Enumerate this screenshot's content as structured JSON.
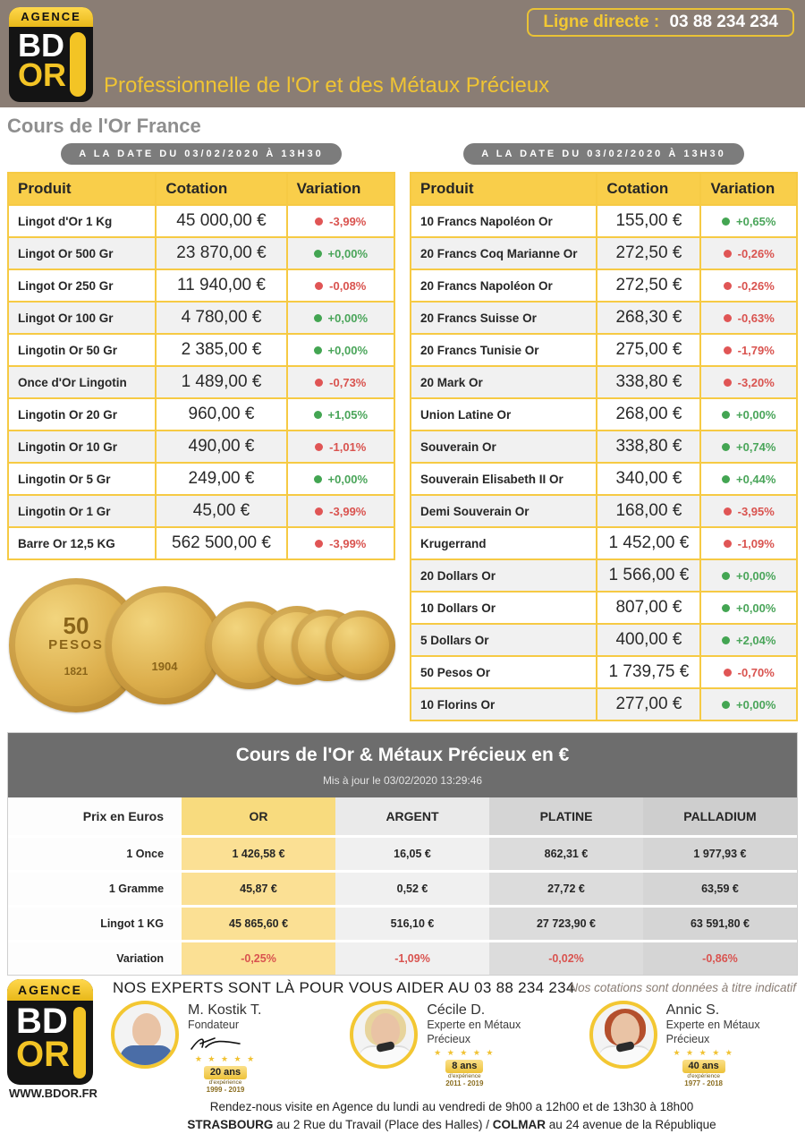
{
  "header": {
    "logo": {
      "band": "AGENCE",
      "top": "BD",
      "bottom": "OR"
    },
    "phone_label": "Ligne directe :",
    "phone_number": "03 88 234 234",
    "tagline": "Professionnelle de l'Or et des Métaux Précieux"
  },
  "page_title": "Cours de l'Or France",
  "price_tables": {
    "date_badge": "A LA DATE DU 03/02/2020 À 13H30",
    "columns": {
      "product": "Produit",
      "price": "Cotation",
      "variation": "Variation"
    },
    "left_rows": [
      {
        "product": "Lingot d'Or 1 Kg",
        "price": "45 000,00 €",
        "variation": "-3,99%",
        "dir": "down"
      },
      {
        "product": "Lingot Or 500 Gr",
        "price": "23 870,00 €",
        "variation": "+0,00%",
        "dir": "up"
      },
      {
        "product": "Lingot Or 250 Gr",
        "price": "11 940,00 €",
        "variation": "-0,08%",
        "dir": "down"
      },
      {
        "product": "Lingot Or 100 Gr",
        "price": "4 780,00 €",
        "variation": "+0,00%",
        "dir": "up"
      },
      {
        "product": "Lingotin Or 50 Gr",
        "price": "2 385,00 €",
        "variation": "+0,00%",
        "dir": "up"
      },
      {
        "product": "Once d'Or Lingotin",
        "price": "1 489,00 €",
        "variation": "-0,73%",
        "dir": "down"
      },
      {
        "product": "Lingotin Or 20 Gr",
        "price": "960,00 €",
        "variation": "+1,05%",
        "dir": "up"
      },
      {
        "product": "Lingotin Or 10 Gr",
        "price": "490,00 €",
        "variation": "-1,01%",
        "dir": "down"
      },
      {
        "product": "Lingotin Or 5 Gr",
        "price": "249,00 €",
        "variation": "+0,00%",
        "dir": "up"
      },
      {
        "product": "Lingotin Or 1 Gr",
        "price": "45,00 €",
        "variation": "-3,99%",
        "dir": "down"
      },
      {
        "product": "Barre Or 12,5 KG",
        "price": "562 500,00 €",
        "variation": "-3,99%",
        "dir": "down"
      }
    ],
    "right_rows": [
      {
        "product": "10 Francs Napoléon Or",
        "price": "155,00 €",
        "variation": "+0,65%",
        "dir": "up"
      },
      {
        "product": "20 Francs Coq Marianne Or",
        "price": "272,50 €",
        "variation": "-0,26%",
        "dir": "down"
      },
      {
        "product": "20 Francs Napoléon Or",
        "price": "272,50 €",
        "variation": "-0,26%",
        "dir": "down"
      },
      {
        "product": "20 Francs Suisse Or",
        "price": "268,30 €",
        "variation": "-0,63%",
        "dir": "down"
      },
      {
        "product": "20 Francs Tunisie Or",
        "price": "275,00 €",
        "variation": "-1,79%",
        "dir": "down"
      },
      {
        "product": "20 Mark Or",
        "price": "338,80 €",
        "variation": "-3,20%",
        "dir": "down"
      },
      {
        "product": "Union Latine Or",
        "price": "268,00 €",
        "variation": "+0,00%",
        "dir": "up"
      },
      {
        "product": "Souverain Or",
        "price": "338,80 €",
        "variation": "+0,74%",
        "dir": "up"
      },
      {
        "product": "Souverain Elisabeth II Or",
        "price": "340,00 €",
        "variation": "+0,44%",
        "dir": "up"
      },
      {
        "product": "Demi Souverain Or",
        "price": "168,00 €",
        "variation": "-3,95%",
        "dir": "down"
      },
      {
        "product": "Krugerrand",
        "price": "1 452,00 €",
        "variation": "-1,09%",
        "dir": "down"
      },
      {
        "product": "20 Dollars Or",
        "price": "1 566,00 €",
        "variation": "+0,00%",
        "dir": "up"
      },
      {
        "product": "10 Dollars Or",
        "price": "807,00 €",
        "variation": "+0,00%",
        "dir": "up"
      },
      {
        "product": "5 Dollars Or",
        "price": "400,00 €",
        "variation": "+2,04%",
        "dir": "up"
      },
      {
        "product": "50 Pesos Or",
        "price": "1 739,75 €",
        "variation": "-0,70%",
        "dir": "down"
      },
      {
        "product": "10 Florins Or",
        "price": "277,00 €",
        "variation": "+0,00%",
        "dir": "up"
      }
    ]
  },
  "coins": {
    "c1_value": "50",
    "c1_unit": "PESOS",
    "c1_year": "1821",
    "c2_year": "1904"
  },
  "metals": {
    "title": "Cours de l'Or & Métaux Précieux en €",
    "updated": "Mis à jour le 03/02/2020 13:29:46",
    "corner_label": "Prix en Euros",
    "columns": [
      "OR",
      "ARGENT",
      "PLATINE",
      "PALLADIUM"
    ],
    "rows": [
      {
        "label": "1 Once",
        "values": [
          "1 426,58 €",
          "16,05 €",
          "862,31 €",
          "1 977,93 €"
        ],
        "negative": false
      },
      {
        "label": "1 Gramme",
        "values": [
          "45,87 €",
          "0,52 €",
          "27,72 €",
          "63,59 €"
        ],
        "negative": false
      },
      {
        "label": "Lingot 1 KG",
        "values": [
          "45 865,60 €",
          "516,10 €",
          "27 723,90 €",
          "63 591,80 €"
        ],
        "negative": false
      },
      {
        "label": "Variation",
        "values": [
          "-0,25%",
          "-1,09%",
          "-0,02%",
          "-0,86%"
        ],
        "negative": true
      }
    ]
  },
  "footer": {
    "website": "WWW.BDOR.FR",
    "experts_title": "NOS EXPERTS SONT LÀ POUR VOUS AIDER AU 03 88 234 234",
    "disclaimer": "Nos cotations sont données à titre indicatif",
    "experience_label": "d'expérience",
    "experts": [
      {
        "name": "M. Kostik T.",
        "role": "Fondateur",
        "badge_years": "20 ans",
        "badge_period": "1999 - 2019"
      },
      {
        "name": "Cécile D.",
        "role": "Experte en Métaux Précieux",
        "badge_years": "8 ans",
        "badge_period": "2011 - 2019"
      },
      {
        "name": "Annic S.",
        "role": "Experte en Métaux Précieux",
        "badge_years": "40 ans",
        "badge_period": "1977 - 2018"
      }
    ],
    "visit_line1": "Rendez-nous visite en Agence du lundi au vendredi de 9h00 a 12h00 et de 13h30 à 18h00",
    "visit_city1": "STRASBOURG",
    "visit_addr1": " au 2 Rue du Travail (Place des Halles) / ",
    "visit_city2": "COLMAR",
    "visit_addr2": " au 24 avenue de la République"
  }
}
